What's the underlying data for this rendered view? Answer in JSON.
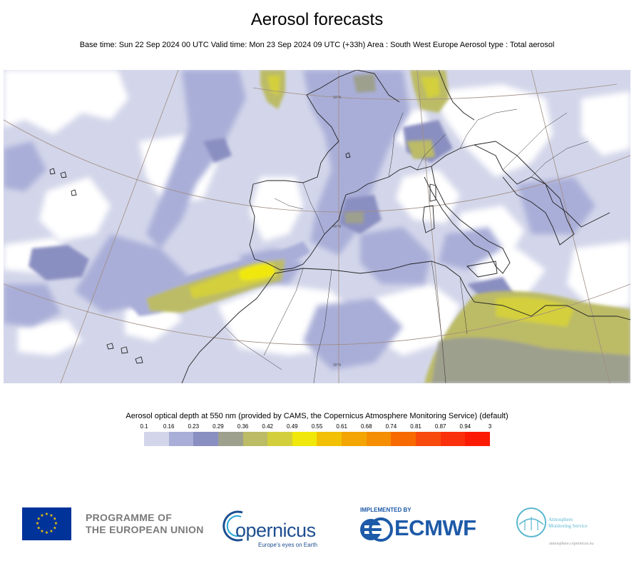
{
  "title": "Aerosol forecasts",
  "subtitle": "Base time: Sun 22 Sep 2024 00 UTC Valid time: Mon 23 Sep 2024 09 UTC (+33h) Area : South West Europe Aerosol type : Total aerosol",
  "map": {
    "graticule_labels": [
      "50°N",
      "40°N",
      "30°N"
    ]
  },
  "legend": {
    "title": "Aerosol optical depth at 550 nm (provided by CAMS, the Copernicus Atmosphere Monitoring Service) (default)",
    "ticks": [
      "0.1",
      "0.16",
      "0.23",
      "0.29",
      "0.36",
      "0.42",
      "0.49",
      "0.55",
      "0.61",
      "0.68",
      "0.74",
      "0.81",
      "0.87",
      "0.94",
      "3"
    ],
    "colors": [
      "#d3d6ea",
      "#a9aed8",
      "#8a8fc1",
      "#9ea08e",
      "#bcbb66",
      "#d3cf3c",
      "#f0e80a",
      "#f2c105",
      "#f3a504",
      "#f58e02",
      "#f76a01",
      "#f84a0c",
      "#fa2f0b",
      "#fb1b05"
    ]
  },
  "footer": {
    "eu_line1": "PROGRAMME OF",
    "eu_line2": "THE EUROPEAN UNION",
    "copernicus": "opernicus",
    "copernicus_tagline": "Europe's eyes on Earth",
    "implemented_by": "IMPLEMENTED BY",
    "ecmwf": "ECMWF",
    "ams_line1": "Atmosphere",
    "ams_line2": "Monitoring Service",
    "ams_url": "atmosphere.copernicus.eu"
  }
}
